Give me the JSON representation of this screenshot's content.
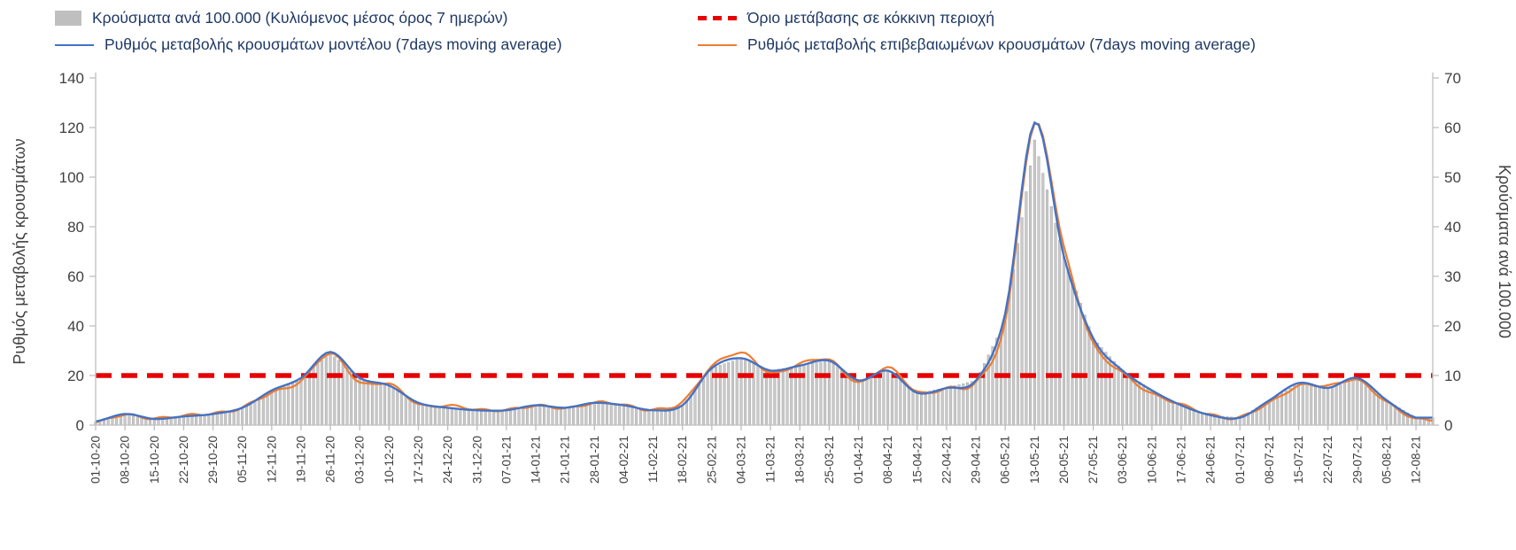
{
  "legend": {
    "bars_label": "Κρούσματα ανά 100.000 (Κυλιόμενος μέσος όρος 7 ημερών)",
    "threshold_label": "Όριο μετάβασης σε κόκκινη περιοχή",
    "model_label": "Ρυθμός μεταβολής κρουσμάτων μοντέλου (7days moving average)",
    "confirmed_label": "Ρυθμός μεταβολής επιβεβαιωμένων κρουσμάτων (7days moving average)"
  },
  "axes": {
    "left_label": "Ρυθμός μεταβολής κρουσμάτων",
    "right_label": "Κρούσματα ανά 100.000",
    "left_ticks": [
      0,
      20,
      40,
      60,
      80,
      100,
      120,
      140
    ],
    "right_ticks": [
      0,
      10,
      20,
      30,
      40,
      50,
      60,
      70
    ],
    "left_range": [
      0,
      140
    ],
    "right_range": [
      0,
      70
    ]
  },
  "colors": {
    "model_line": "#4472c4",
    "confirmed_line": "#ed7d31",
    "threshold_line": "#e60000",
    "bars_fill": "#c9c9c9",
    "bars_stroke": "#8f8f8f",
    "axis_line": "#bfbfbf",
    "tick_text": "#404040",
    "legend_text": "#1f3864"
  },
  "chart_data": {
    "type": "line",
    "title": "",
    "xlabel": "",
    "ylabel_left": "Ρυθμός μεταβολής κρουσμάτων",
    "ylabel_right": "Κρούσματα ανά 100.000",
    "ylim_left": [
      0,
      140
    ],
    "ylim_right": [
      0,
      70
    ],
    "grid": false,
    "legend_position": "top",
    "categories": [
      "01-10-20",
      "08-10-20",
      "15-10-20",
      "22-10-20",
      "29-10-20",
      "05-11-20",
      "12-11-20",
      "19-11-20",
      "26-11-20",
      "03-12-20",
      "10-12-20",
      "17-12-20",
      "24-12-20",
      "31-12-20",
      "07-01-21",
      "14-01-21",
      "21-01-21",
      "28-01-21",
      "04-02-21",
      "11-02-21",
      "18-02-21",
      "25-02-21",
      "04-03-21",
      "11-03-21",
      "18-03-21",
      "25-03-21",
      "01-04-21",
      "08-04-21",
      "15-04-21",
      "22-04-21",
      "29-04-21",
      "06-05-21",
      "13-05-21",
      "20-05-21",
      "27-05-21",
      "03-06-21",
      "10-06-21",
      "17-06-21",
      "24-06-21",
      "01-07-21",
      "08-07-21",
      "15-07-21",
      "22-07-21",
      "29-07-21",
      "05-08-21",
      "12-08-21"
    ],
    "series": [
      {
        "name": "Ρυθμός μεταβολής κρουσμάτων μοντέλου (7days moving average)",
        "axis": "left",
        "values": [
          1.5,
          4.5,
          2.5,
          3.5,
          4.5,
          7,
          14,
          19,
          29.5,
          19,
          16,
          9,
          7,
          6,
          6,
          8,
          7,
          9,
          8,
          6,
          8,
          23,
          27,
          22,
          24,
          26,
          18,
          22,
          13,
          15,
          18,
          45,
          122,
          68,
          35,
          22,
          14,
          8,
          4,
          3,
          10,
          17,
          15,
          19,
          10,
          3
        ]
      },
      {
        "name": "Ρυθμός μεταβολής επιβεβαιωμένων κρουσμάτων (7days moving average)",
        "axis": "left",
        "values": [
          1,
          4,
          3,
          3.5,
          5,
          7,
          13,
          18,
          28.5,
          17.5,
          16.5,
          8.5,
          8,
          6,
          6.5,
          7.5,
          7,
          9,
          8,
          6.5,
          9,
          24,
          29,
          21,
          25,
          26,
          17.5,
          23,
          13.5,
          15,
          17,
          42,
          121,
          72,
          33,
          21,
          13,
          8,
          4.5,
          3,
          9,
          16,
          15.5,
          18.5,
          9,
          2.5
        ]
      },
      {
        "name": "Κρούσματα ανά 100.000 (Κυλιόμενος μέσος όρος 7 ημερών)",
        "axis": "right",
        "values": [
          0.7,
          2.2,
          1.2,
          1.7,
          2.2,
          3.5,
          7,
          9.5,
          14.5,
          9.5,
          8,
          4.5,
          3.5,
          3,
          3,
          4,
          3.5,
          4.5,
          4,
          3,
          4,
          11.5,
          13.5,
          11,
          12,
          13,
          9,
          11,
          6.5,
          7.5,
          9,
          21,
          57.5,
          34,
          17.5,
          11,
          7,
          4,
          2,
          1.5,
          5,
          8.5,
          7.5,
          9.5,
          5,
          1.5
        ]
      }
    ],
    "threshold": {
      "label": "Όριο μετάβασης σε κόκκινη περιοχή",
      "value_left_axis": 20,
      "value_right_axis": 10
    }
  }
}
